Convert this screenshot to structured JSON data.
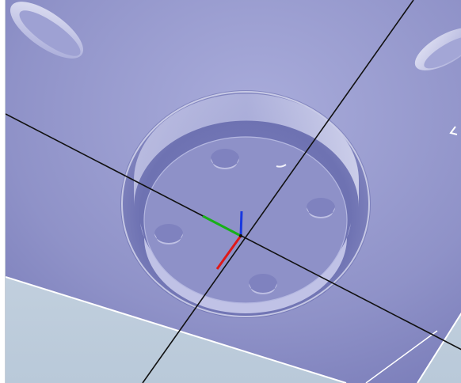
{
  "viewport": {
    "kind": "cad-3d-view",
    "part_surface_color": "#8f92c8",
    "background_plane_color": "#c5d3e0",
    "axis_colors": {
      "x": "#e01818",
      "y": "#18b018",
      "z": "#1838e0"
    },
    "icons": [
      "triad-icon",
      "axis-origin-icon",
      "hole-icon",
      "slot-icon",
      "cursor-mark-icon"
    ],
    "counts": {
      "holes_on_boss": 4
    }
  }
}
